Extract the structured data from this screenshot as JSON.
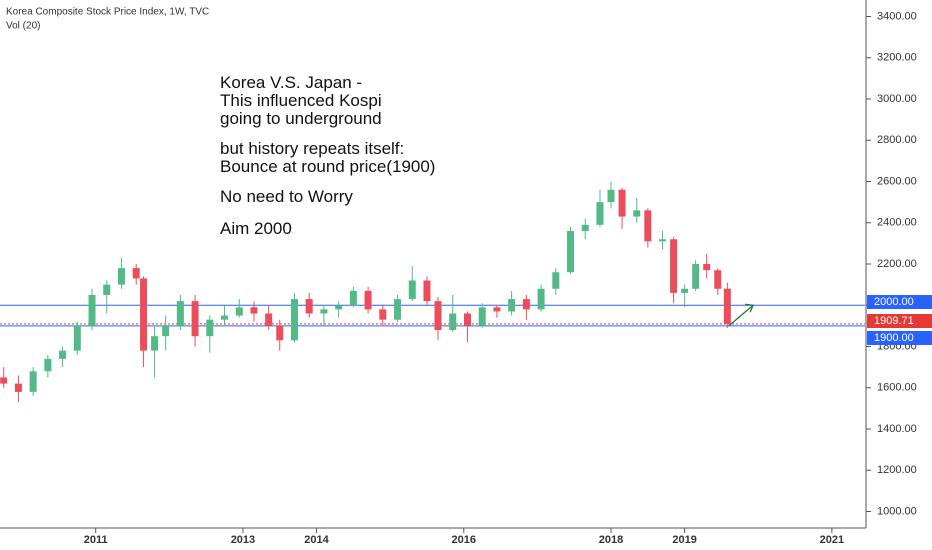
{
  "chart_data": {
    "type": "candlestick",
    "title": "Korea Composite Stock Price Index, 1W, TVC",
    "subtitle": "Vol (20)",
    "annotations": [
      "Korea V.S. Japan -",
      "This influenced Kospi",
      "going to underground",
      "but history repeats itself:",
      "Bounce at round price(1900)",
      "No need to Worry",
      "Aim 2000"
    ],
    "x": [
      2009.75,
      2009.95,
      2010.15,
      2010.35,
      2010.55,
      2010.75,
      2010.95,
      2011.15,
      2011.35,
      2011.55,
      2011.65,
      2011.8,
      2011.95,
      2012.15,
      2012.35,
      2012.55,
      2012.75,
      2012.95,
      2013.15,
      2013.35,
      2013.5,
      2013.7,
      2013.9,
      2014.1,
      2014.3,
      2014.5,
      2014.7,
      2014.9,
      2015.1,
      2015.3,
      2015.5,
      2015.65,
      2015.85,
      2016.05,
      2016.25,
      2016.45,
      2016.65,
      2016.85,
      2017.05,
      2017.25,
      2017.45,
      2017.65,
      2017.85,
      2018.0,
      2018.15,
      2018.35,
      2018.5,
      2018.7,
      2018.85,
      2019.0,
      2019.15,
      2019.3,
      2019.45,
      2019.58
    ],
    "open": [
      1650,
      1620,
      1580,
      1680,
      1740,
      1780,
      1900,
      2050,
      2100,
      2180,
      2130,
      1780,
      1850,
      1900,
      2020,
      1850,
      1930,
      1950,
      1990,
      1960,
      1900,
      1830,
      2030,
      1960,
      1980,
      2000,
      2070,
      1980,
      1930,
      2030,
      2120,
      2020,
      1880,
      1960,
      1900,
      1990,
      1970,
      2030,
      1980,
      2080,
      2160,
      2360,
      2390,
      2500,
      2560,
      2430,
      2460,
      2310,
      2320,
      2060,
      2080,
      2200,
      2170,
      2080
    ],
    "high": [
      1700,
      1660,
      1700,
      1760,
      1800,
      1920,
      2080,
      2120,
      2230,
      2200,
      2140,
      1900,
      1950,
      2050,
      2050,
      1950,
      2000,
      2030,
      2020,
      2000,
      1930,
      2060,
      2060,
      2000,
      2020,
      2090,
      2090,
      2000,
      2050,
      2190,
      2140,
      2040,
      2050,
      1970,
      2010,
      2000,
      2070,
      2050,
      2100,
      2180,
      2380,
      2420,
      2560,
      2600,
      2570,
      2520,
      2470,
      2360,
      2330,
      2100,
      2220,
      2250,
      2180,
      2110
    ],
    "low": [
      1600,
      1530,
      1560,
      1650,
      1700,
      1760,
      1880,
      1960,
      2080,
      2100,
      1700,
      1650,
      1780,
      1880,
      1800,
      1770,
      1900,
      1940,
      1920,
      1880,
      1780,
      1820,
      1940,
      1900,
      1940,
      1990,
      1960,
      1900,
      1920,
      2020,
      2000,
      1830,
      1870,
      1820,
      1890,
      1940,
      1950,
      1930,
      1970,
      2050,
      2150,
      2320,
      2380,
      2470,
      2370,
      2400,
      2280,
      2270,
      2010,
      1990,
      2070,
      2130,
      2050,
      1890
    ],
    "close": [
      1620,
      1580,
      1680,
      1740,
      1780,
      1900,
      2050,
      2100,
      2180,
      2130,
      1780,
      1850,
      1900,
      2020,
      1850,
      1930,
      1950,
      1990,
      1960,
      1900,
      1830,
      2030,
      1960,
      1980,
      2000,
      2070,
      1980,
      1930,
      2030,
      2120,
      2020,
      1880,
      1960,
      1900,
      1990,
      1970,
      2030,
      1980,
      2080,
      2160,
      2360,
      2390,
      2500,
      2560,
      2430,
      2460,
      2310,
      2320,
      2060,
      2080,
      2200,
      2170,
      2080,
      1910
    ],
    "up_color": "#53b987",
    "down_color": "#eb4d5c",
    "xlim": [
      2009.7,
      2021.45
    ],
    "xticks": [
      2011,
      2013,
      2014,
      2016,
      2018,
      2019,
      2021
    ],
    "ylim": [
      920,
      3480
    ],
    "yticks": [
      {
        "value": 1000,
        "label": "1000.00"
      },
      {
        "value": 1200,
        "label": "1200.00"
      },
      {
        "value": 1400,
        "label": "1400.00"
      },
      {
        "value": 1600,
        "label": "1600.00"
      },
      {
        "value": 1800,
        "label": "1800.00"
      },
      {
        "value": 2000,
        "label": "2000.00"
      },
      {
        "value": 2200,
        "label": "2200.00"
      },
      {
        "value": 2400,
        "label": "2400.00"
      },
      {
        "value": 2600,
        "label": "2600.00"
      },
      {
        "value": 2800,
        "label": "2800.00"
      },
      {
        "value": 3000,
        "label": "3000.00"
      },
      {
        "value": 3200,
        "label": "3200.00"
      },
      {
        "value": 3400,
        "label": "3400.00"
      }
    ],
    "hlines": [
      {
        "value": 2000,
        "label": "2000.00",
        "color": "#2962ff"
      },
      {
        "value": 1900,
        "label": "1900.00",
        "color": "#2962ff"
      },
      {
        "value": 1909.71,
        "label": "1909.71",
        "color": "#e53935"
      }
    ]
  }
}
